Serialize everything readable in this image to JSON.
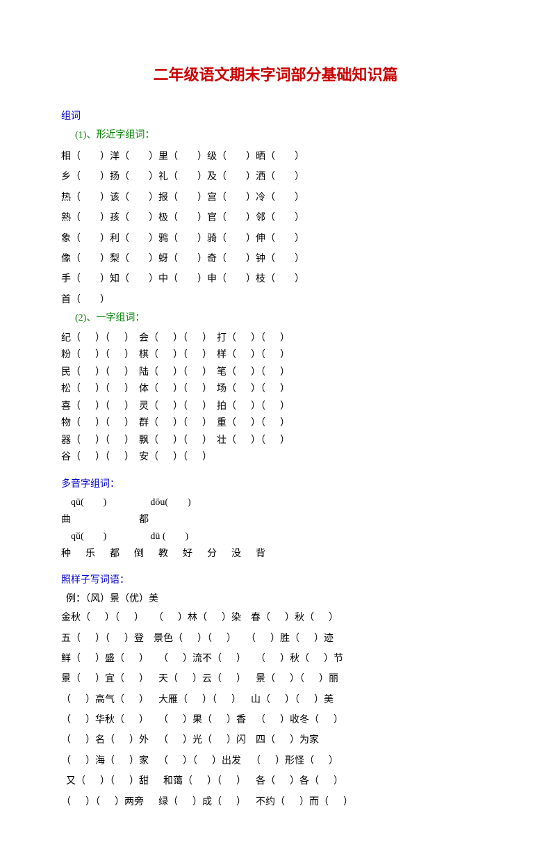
{
  "colors": {
    "title": "#cc0000",
    "section": "#0000cc",
    "subsection": "#008000",
    "text": "#000000",
    "background": "#ffffff"
  },
  "fonts": {
    "title_size": 22,
    "section_size": 14,
    "body_size": 14
  },
  "title": "二年级语文期末字词部分基础知识篇",
  "s1_head": "组词",
  "s1a_sub": "(1)、形近字组词：",
  "s1a_rows": [
    "相（        ）洋（        ）里（        ）级（        ）晒（        ）",
    "乡（        ）扬（        ）礼（        ）及（        ）洒（        ）",
    "热（        ）该（        ）报（        ）宫（        ）冷（        ）",
    "熟（        ）孩（        ）极（        ）官（        ）邻（        ）",
    "象（        ）利（        ）鸦（        ）骑（        ）伸（        ）",
    "像（        ）梨（        ）蚜（        ）奇（        ）钟（        ）",
    "手（        ）知（        ）中（        ）申（        ）枝（        ）",
    "首（        ）"
  ],
  "s1b_sub": "(2)、一字组词：",
  "s1b_rows": [
    "纪（      ）（      ）  会（      ）（      ）  打（      ）（      ）",
    "粉（      ）（      ）  棋（      ）（      ）  样（      ）（      ）",
    "民（      ）（      ）  陆（      ）（      ）  笔（      ）（      ）",
    "松（      ）（      ）  体（      ）（      ）  场（      ）（      ）",
    "喜（      ）（      ）  灵（      ）（      ）  拍（      ）（      ）",
    "物（      ）（      ）  群（      ）（      ）  重（      ）（      ）",
    "器（      ）（      ）  飘（      ）（      ）  壮（      ）（      ）",
    "谷（      ）（      ）  安（      ）（      ）"
  ],
  "s2_head": "多音字组词：",
  "s2_rows": [
    "    qū(        )                  dōu(        )",
    "曲                            都",
    "    qǔ(        )                  dū (        )",
    "种      乐      都      倒      教      好      分      没      背"
  ],
  "s3_head": "照样子写词语：",
  "s3_example": "  例：（风）景（优）美",
  "s3_rows": [
    "金秋（      ）（      ）    （      ）林（      ）染    春（      ）秋（      ）",
    "五（      ）（      ）登    景色（      ）（      ）    （      ）胜（      ）迹",
    "鲜（      ）盛（      ）    （      ）流不（      ）    （      ）秋（      ）节",
    "景（      ）宜（      ）    天（      ）云（      ）    景（      ）（      ）丽",
    "（      ）高气（      ）    大雁（      ）（      ）    山（      ）（      ）美",
    "（      ）华秋（      ）    （      ）果（      ）香    （      ）收冬（      ）",
    "（      ）名（      ）外    （      ）光（      ）闪    四（      ）为家",
    "（      ）海（      ）家    （      ）（      ）出发    （      ）形怪（      ）",
    "  又（      ）（      ）甜      和蔼（      ）（      ）    各（      ）各（      ）",
    "（      ）（      ）两旁      绿（      ）成（      ）    不约（      ）而（      ）"
  ]
}
